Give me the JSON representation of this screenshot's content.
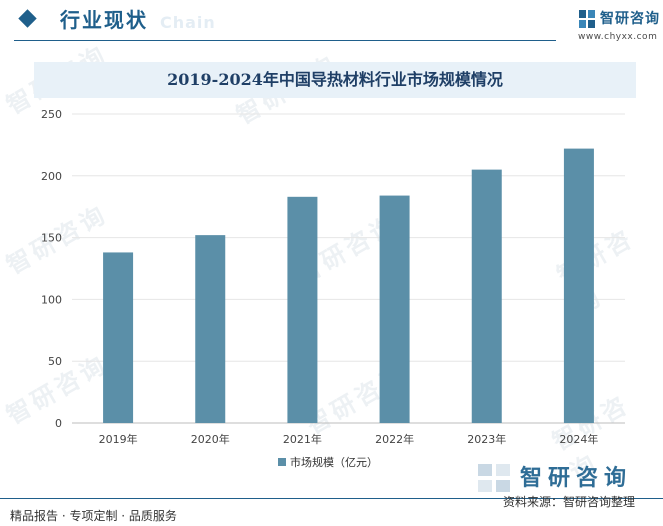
{
  "header": {
    "section_title": "行业现状",
    "section_ghost": "Chain",
    "brand_name": "智研咨询",
    "brand_url": "www.chyxx.com"
  },
  "chart_data": {
    "type": "bar",
    "title": "2019-2024年中国导热材料行业市场规模情况",
    "categories": [
      "2019年",
      "2020年",
      "2021年",
      "2022年",
      "2023年",
      "2024年"
    ],
    "series": [
      {
        "name": "市场规模（亿元）",
        "values": [
          138,
          152,
          183,
          184,
          205,
          222
        ]
      }
    ],
    "ylim": [
      0,
      250
    ],
    "yticks": [
      0,
      50,
      100,
      150,
      200,
      250
    ],
    "xlabel": "",
    "ylabel": "",
    "grid": true,
    "legend": "bottom-center",
    "bar_color": "#5b8fa8"
  },
  "footer": {
    "brand": "智研咨询",
    "source": "资料来源：智研咨询整理",
    "tagline": "精品报告 · 专项定制 · 品质服务"
  }
}
